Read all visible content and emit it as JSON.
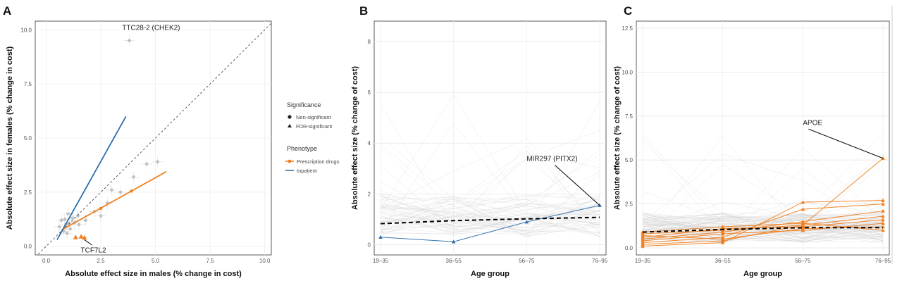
{
  "chart_data": [
    {
      "panel": "A",
      "type": "scatter",
      "xlabel": "Absolute effect size in males (% change in cost)",
      "ylabel": "Absolute effect size in females (% change in cost)",
      "xlim": [
        -0.5,
        10.3
      ],
      "ylim": [
        -0.4,
        10.4
      ],
      "xticks": [
        0.0,
        2.5,
        5.0,
        7.5,
        10.0
      ],
      "yticks": [
        0.0,
        2.5,
        5.0,
        7.5,
        10.0
      ],
      "grid": true,
      "reference_line": "y = x (dashed)",
      "series": [
        {
          "name": "Prescription drugs",
          "color": "#f07f1f",
          "fit_line": [
            [
              0.7,
              0.75
            ],
            [
              5.5,
              3.45
            ]
          ],
          "significant_points": [
            [
              1.35,
              0.42
            ],
            [
              1.6,
              0.45
            ],
            [
              1.75,
              0.4
            ]
          ]
        },
        {
          "name": "Inpatient",
          "color": "#2e6fad",
          "fit_line": [
            [
              0.5,
              0.3
            ],
            [
              3.65,
              6.0
            ]
          ]
        }
      ],
      "background_points": [
        [
          0.9,
          1.0
        ],
        [
          1.1,
          0.8
        ],
        [
          0.7,
          1.2
        ],
        [
          1.3,
          1.1
        ],
        [
          0.8,
          0.7
        ],
        [
          1.2,
          1.3
        ],
        [
          1.5,
          1.0
        ],
        [
          0.6,
          0.9
        ],
        [
          1.0,
          1.5
        ],
        [
          1.8,
          1.2
        ],
        [
          2.2,
          1.6
        ],
        [
          2.8,
          2.0
        ],
        [
          3.4,
          2.5
        ],
        [
          3.0,
          2.6
        ],
        [
          4.0,
          3.2
        ],
        [
          4.6,
          3.8
        ],
        [
          5.1,
          3.9
        ],
        [
          2.5,
          1.4
        ],
        [
          0.95,
          0.6
        ],
        [
          1.45,
          1.4
        ],
        [
          1.05,
          1.05
        ],
        [
          0.85,
          1.25
        ],
        [
          3.8,
          9.5
        ]
      ],
      "annotations": [
        {
          "label": "TTC28-2 (CHEK2)",
          "x": 4.8,
          "y": 10.0
        },
        {
          "label": "TCF7L2",
          "x": 1.45,
          "y": 0.0
        }
      ]
    },
    {
      "panel": "B",
      "type": "line",
      "xlabel": "Age group",
      "ylabel": "Absolute effect size (% change of cost)",
      "categories": [
        "19–35",
        "36–55",
        "56–75",
        "76–95"
      ],
      "ylim": [
        -0.4,
        8.8
      ],
      "yticks": [
        0,
        2,
        4,
        6,
        8
      ],
      "grid": true,
      "series": [
        {
          "name": "MIR297 (PITX2)",
          "color": "#2e6fad",
          "values": [
            0.3,
            0.12,
            0.9,
            1.55
          ]
        },
        {
          "name": "mean",
          "color": "#000000",
          "dashed": true,
          "values": [
            0.83,
            0.95,
            1.02,
            1.08
          ]
        }
      ],
      "annotations": [
        {
          "label": "MIR297 (PITX2)",
          "category": "56–75",
          "y": 3.3
        }
      ]
    },
    {
      "panel": "C",
      "type": "line",
      "xlabel": "Age group",
      "ylabel": "Absolute effect size (% change of cost)",
      "categories": [
        "19–35",
        "36–55",
        "56–75",
        "76–95"
      ],
      "ylim": [
        -0.4,
        12.9
      ],
      "yticks": [
        0.0,
        2.5,
        5.0,
        7.5,
        10.0,
        12.5
      ],
      "grid": true,
      "series": [
        {
          "name": "APOE",
          "color": "#f07f1f",
          "values": [
            0.8,
            1.0,
            1.3,
            5.1
          ]
        },
        {
          "name": "orange-2",
          "color": "#f07f1f",
          "values": [
            0.1,
            0.3,
            2.6,
            2.7
          ]
        },
        {
          "name": "orange-3",
          "color": "#f07f1f",
          "values": [
            0.3,
            0.6,
            2.2,
            2.5
          ]
        },
        {
          "name": "orange-4",
          "color": "#f07f1f",
          "values": [
            0.5,
            0.9,
            1.5,
            2.1
          ]
        },
        {
          "name": "orange-5",
          "color": "#f07f1f",
          "values": [
            0.2,
            0.4,
            1.3,
            1.8
          ]
        },
        {
          "name": "orange-6",
          "color": "#f07f1f",
          "values": [
            0.6,
            1.1,
            1.2,
            1.6
          ]
        },
        {
          "name": "orange-7",
          "color": "#f07f1f",
          "values": [
            0.4,
            0.8,
            1.0,
            1.4
          ]
        },
        {
          "name": "orange-8",
          "color": "#f07f1f",
          "values": [
            0.7,
            0.5,
            1.1,
            1.2
          ]
        },
        {
          "name": "orange-9",
          "color": "#f07f1f",
          "values": [
            0.9,
            1.2,
            1.4,
            1.0
          ]
        },
        {
          "name": "mean",
          "color": "#000000",
          "dashed": true,
          "values": [
            0.9,
            1.05,
            1.15,
            1.15
          ]
        }
      ],
      "annotations": [
        {
          "label": "APOE",
          "category": "56–75",
          "y": 7.0
        }
      ]
    }
  ],
  "panels": {
    "a": "A",
    "b": "B",
    "c": "C"
  },
  "legend": {
    "significance_title": "Significance",
    "significance_items": [
      "Non-significant",
      "FDR-significant"
    ],
    "phenotype_title": "Phenotype",
    "phenotype_items": [
      "Prescription drugs",
      "Inpatient"
    ],
    "colors": {
      "prescription": "#f07f1f",
      "inpatient": "#2e6fad"
    }
  }
}
